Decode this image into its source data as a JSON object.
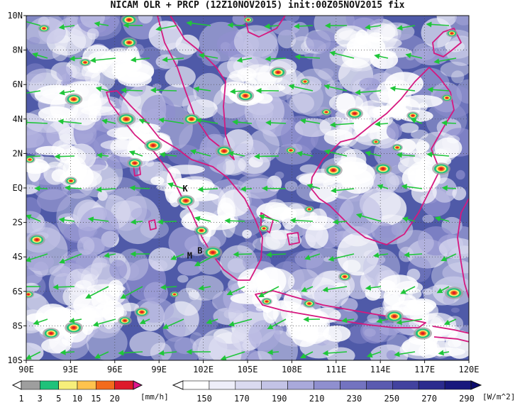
{
  "title": "NICAM OLR + PRCP (12Z10NOV2015) init:00Z05NOV2015 fix",
  "axes": {
    "lat_labels": [
      "10N",
      "8N",
      "6N",
      "4N",
      "2N",
      "EQ",
      "2S",
      "4S",
      "6S",
      "8S",
      "10S"
    ],
    "lat_values": [
      10,
      8,
      6,
      4,
      2,
      0,
      -2,
      -4,
      -6,
      -8,
      -10
    ],
    "lon_labels": [
      "90E",
      "93E",
      "96E",
      "99E",
      "102E",
      "105E",
      "108E",
      "111E",
      "114E",
      "117E",
      "120E"
    ],
    "lon_values": [
      90,
      93,
      96,
      99,
      102,
      105,
      108,
      111,
      114,
      117,
      120
    ],
    "lon_range": [
      90,
      120
    ],
    "lat_range": [
      -10,
      10
    ],
    "grid": "dotted"
  },
  "places": [
    {
      "label": "K",
      "lon": 100.6,
      "lat": -0.2
    },
    {
      "label": "M",
      "lon": 100.9,
      "lat": -4.1
    },
    {
      "label": "B",
      "lon": 101.6,
      "lat": -3.8
    }
  ],
  "precip_scale": {
    "unit": "[mm/h]",
    "ticks": [
      "1",
      "3",
      "5",
      "10",
      "15",
      "20"
    ],
    "colors": [
      "#9e9e9e",
      "#1fc27a",
      "#f7ef7a",
      "#ffc34d",
      "#f36b1c",
      "#dd1a2a",
      "#e0188e"
    ]
  },
  "olr_scale": {
    "unit": "[W/m^2]",
    "ticks": [
      "150",
      "170",
      "190",
      "210",
      "230",
      "250",
      "270",
      "290"
    ],
    "colors": [
      "#ffffff",
      "#eeeef9",
      "#dadaf0",
      "#c3c3e6",
      "#a9a9db",
      "#8f8fcf",
      "#7373c0",
      "#5a5ab0",
      "#42429f",
      "#2b2b8e",
      "#18187d",
      "#0d0d6e"
    ]
  },
  "colors": {
    "wind_vector": "#1fc63a",
    "coastline": "#d6187f",
    "ocean_base": "#4f5aa8"
  }
}
